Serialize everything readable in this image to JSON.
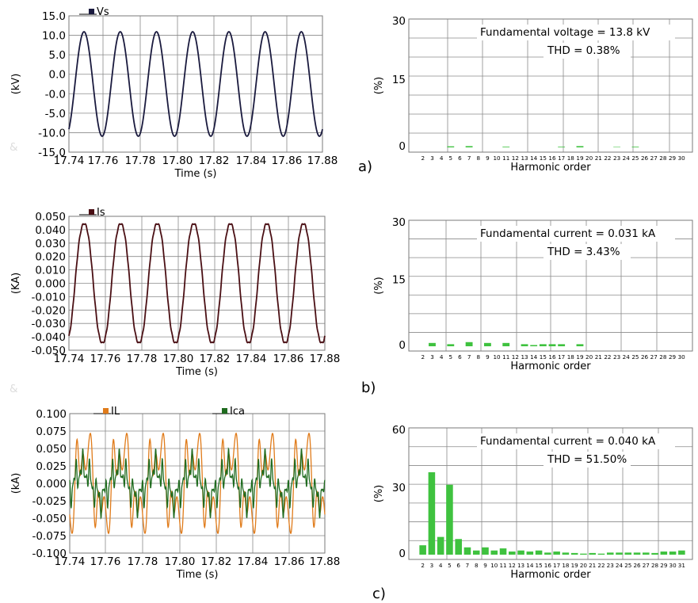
{
  "chart_data": [
    {
      "id": "a-time",
      "type": "line",
      "xlabel": "Time (s)",
      "ylabel": "(kV)",
      "x_ticks": [
        "17.74",
        "17.76",
        "17.78",
        "17.80",
        "17.82",
        "17.84",
        "17.86",
        "17.88"
      ],
      "y_ticks": [
        "15.0",
        "10.0",
        "5.0",
        "0.0",
        "-0.0",
        "-5.0",
        "-10.0",
        "-15.0"
      ],
      "xlim": [
        17.74,
        17.88
      ],
      "ylim": [
        -15,
        15
      ],
      "grid": true,
      "legend_placement": "top-left",
      "series": [
        {
          "name": "Vs",
          "color": "#1a1a3e",
          "amplitude": 11.5,
          "frequency_hz": 50,
          "phase_deg": -60,
          "distortion": "none"
        }
      ]
    },
    {
      "id": "a-spectrum",
      "type": "bar",
      "xlabel": "Harmonic order",
      "ylabel": "(%)",
      "y_ticks": [
        "30",
        "15",
        "0"
      ],
      "ylim": [
        0,
        30
      ],
      "grid": true,
      "bar_color": "#3fc23f",
      "categories": [
        "2",
        "3",
        "4",
        "5",
        "6",
        "7",
        "8",
        "9",
        "10",
        "11",
        "12",
        "13",
        "14",
        "15",
        "16",
        "17",
        "18",
        "19",
        "20",
        "21",
        "22",
        "23",
        "24",
        "25",
        "26",
        "27",
        "28",
        "29",
        "30"
      ],
      "values": [
        0,
        0,
        0,
        0.25,
        0,
        0.3,
        0,
        0,
        0,
        0.15,
        0,
        0,
        0,
        0,
        0,
        0.15,
        0,
        0.3,
        0,
        0,
        0,
        0.1,
        0,
        0.15,
        0,
        0,
        0,
        0,
        0
      ],
      "annotations": [
        "Fundamental voltage = 13.8 kV",
        "THD = 0.38%"
      ]
    },
    {
      "id": "b-time",
      "type": "line",
      "xlabel": "Time (s)",
      "ylabel": "(KA)",
      "x_ticks": [
        "17.74",
        "17.76",
        "17.78",
        "17.80",
        "17.82",
        "17.84",
        "17.86",
        "17.88"
      ],
      "y_ticks": [
        "0.050",
        "0.040",
        "0.030",
        "0.020",
        "0.010",
        "0.000",
        "-0.010",
        "-0.020",
        "-0.030",
        "-0.040",
        "-0.050"
      ],
      "xlim": [
        17.74,
        17.88
      ],
      "ylim": [
        -0.05,
        0.05
      ],
      "grid": true,
      "legend_placement": "top-left",
      "series": [
        {
          "name": "Is",
          "color": "#4a0f14",
          "amplitude": 0.046,
          "frequency_hz": 50,
          "phase_deg": -60,
          "distortion": "slight"
        }
      ]
    },
    {
      "id": "b-spectrum",
      "type": "bar",
      "xlabel": "Harmonic order",
      "ylabel": "(%)",
      "y_ticks": [
        "30",
        "15",
        "0"
      ],
      "ylim": [
        0,
        30
      ],
      "grid": true,
      "bar_color": "#3fc23f",
      "categories": [
        "2",
        "3",
        "4",
        "5",
        "6",
        "7",
        "8",
        "9",
        "10",
        "11",
        "12",
        "13",
        "14",
        "15",
        "16",
        "17",
        "18",
        "19",
        "20",
        "21",
        "22",
        "23",
        "24",
        "25",
        "26",
        "27",
        "28",
        "29",
        "30"
      ],
      "values": [
        0,
        0.8,
        0,
        0.5,
        0,
        1.0,
        0,
        0.8,
        0,
        0.8,
        0,
        0.5,
        0.3,
        0.5,
        0.5,
        0.5,
        0,
        0.5,
        0,
        0,
        0,
        0,
        0,
        0,
        0,
        0,
        0,
        0,
        0
      ],
      "annotations": [
        "Fundamental current = 0.031 kA",
        "THD = 3.43%"
      ]
    },
    {
      "id": "c-time",
      "type": "line",
      "xlabel": "Time (s)",
      "ylabel": "(kA)",
      "x_ticks": [
        "17.74",
        "17.76",
        "17.78",
        "17.80",
        "17.82",
        "17.84",
        "17.86",
        "17.88"
      ],
      "y_ticks": [
        "0.100",
        "0.075",
        "0.050",
        "0.025",
        "0.000",
        "-0.025",
        "-0.050",
        "-0.075",
        "-0.100"
      ],
      "xlim": [
        17.74,
        17.88
      ],
      "ylim": [
        -0.1,
        0.1
      ],
      "grid": true,
      "legend_placement": "top",
      "series": [
        {
          "name": "IL",
          "color": "#e07b1a",
          "amplitude": 0.085,
          "frequency_hz": 50,
          "phase_deg": -60,
          "distortion": "heavy"
        },
        {
          "name": "Ica",
          "color": "#1f6b1f",
          "amplitude": 0.045,
          "frequency_hz": 50,
          "phase_deg": -60,
          "distortion": "heavy"
        }
      ]
    },
    {
      "id": "c-spectrum",
      "type": "bar",
      "xlabel": "Harmonic order",
      "ylabel": "(%)",
      "y_ticks": [
        "60",
        "30",
        "0"
      ],
      "ylim": [
        0,
        60
      ],
      "grid": true,
      "bar_color": "#3fc23f",
      "categories": [
        "2",
        "3",
        "4",
        "5",
        "6",
        "7",
        "8",
        "9",
        "10",
        "11",
        "12",
        "13",
        "14",
        "15",
        "16",
        "17",
        "18",
        "19",
        "20",
        "21",
        "22",
        "23",
        "24",
        "25",
        "26",
        "27",
        "28",
        "29",
        "30",
        "31"
      ],
      "values": [
        4.5,
        39.5,
        8.5,
        33.5,
        7.5,
        3.5,
        2,
        3.5,
        2,
        3,
        1.5,
        2,
        1.5,
        2,
        1,
        1.5,
        1,
        0.8,
        0.5,
        0.8,
        0.5,
        1,
        1,
        1,
        1,
        1,
        0.8,
        1.5,
        1.5,
        2
      ],
      "annotations": [
        "Fundamental current = 0.040 kA",
        "THD = 51.50%"
      ]
    }
  ],
  "panel_labels": [
    "a)",
    "b)",
    "c)"
  ],
  "stray_marks": [
    "&",
    "&"
  ]
}
